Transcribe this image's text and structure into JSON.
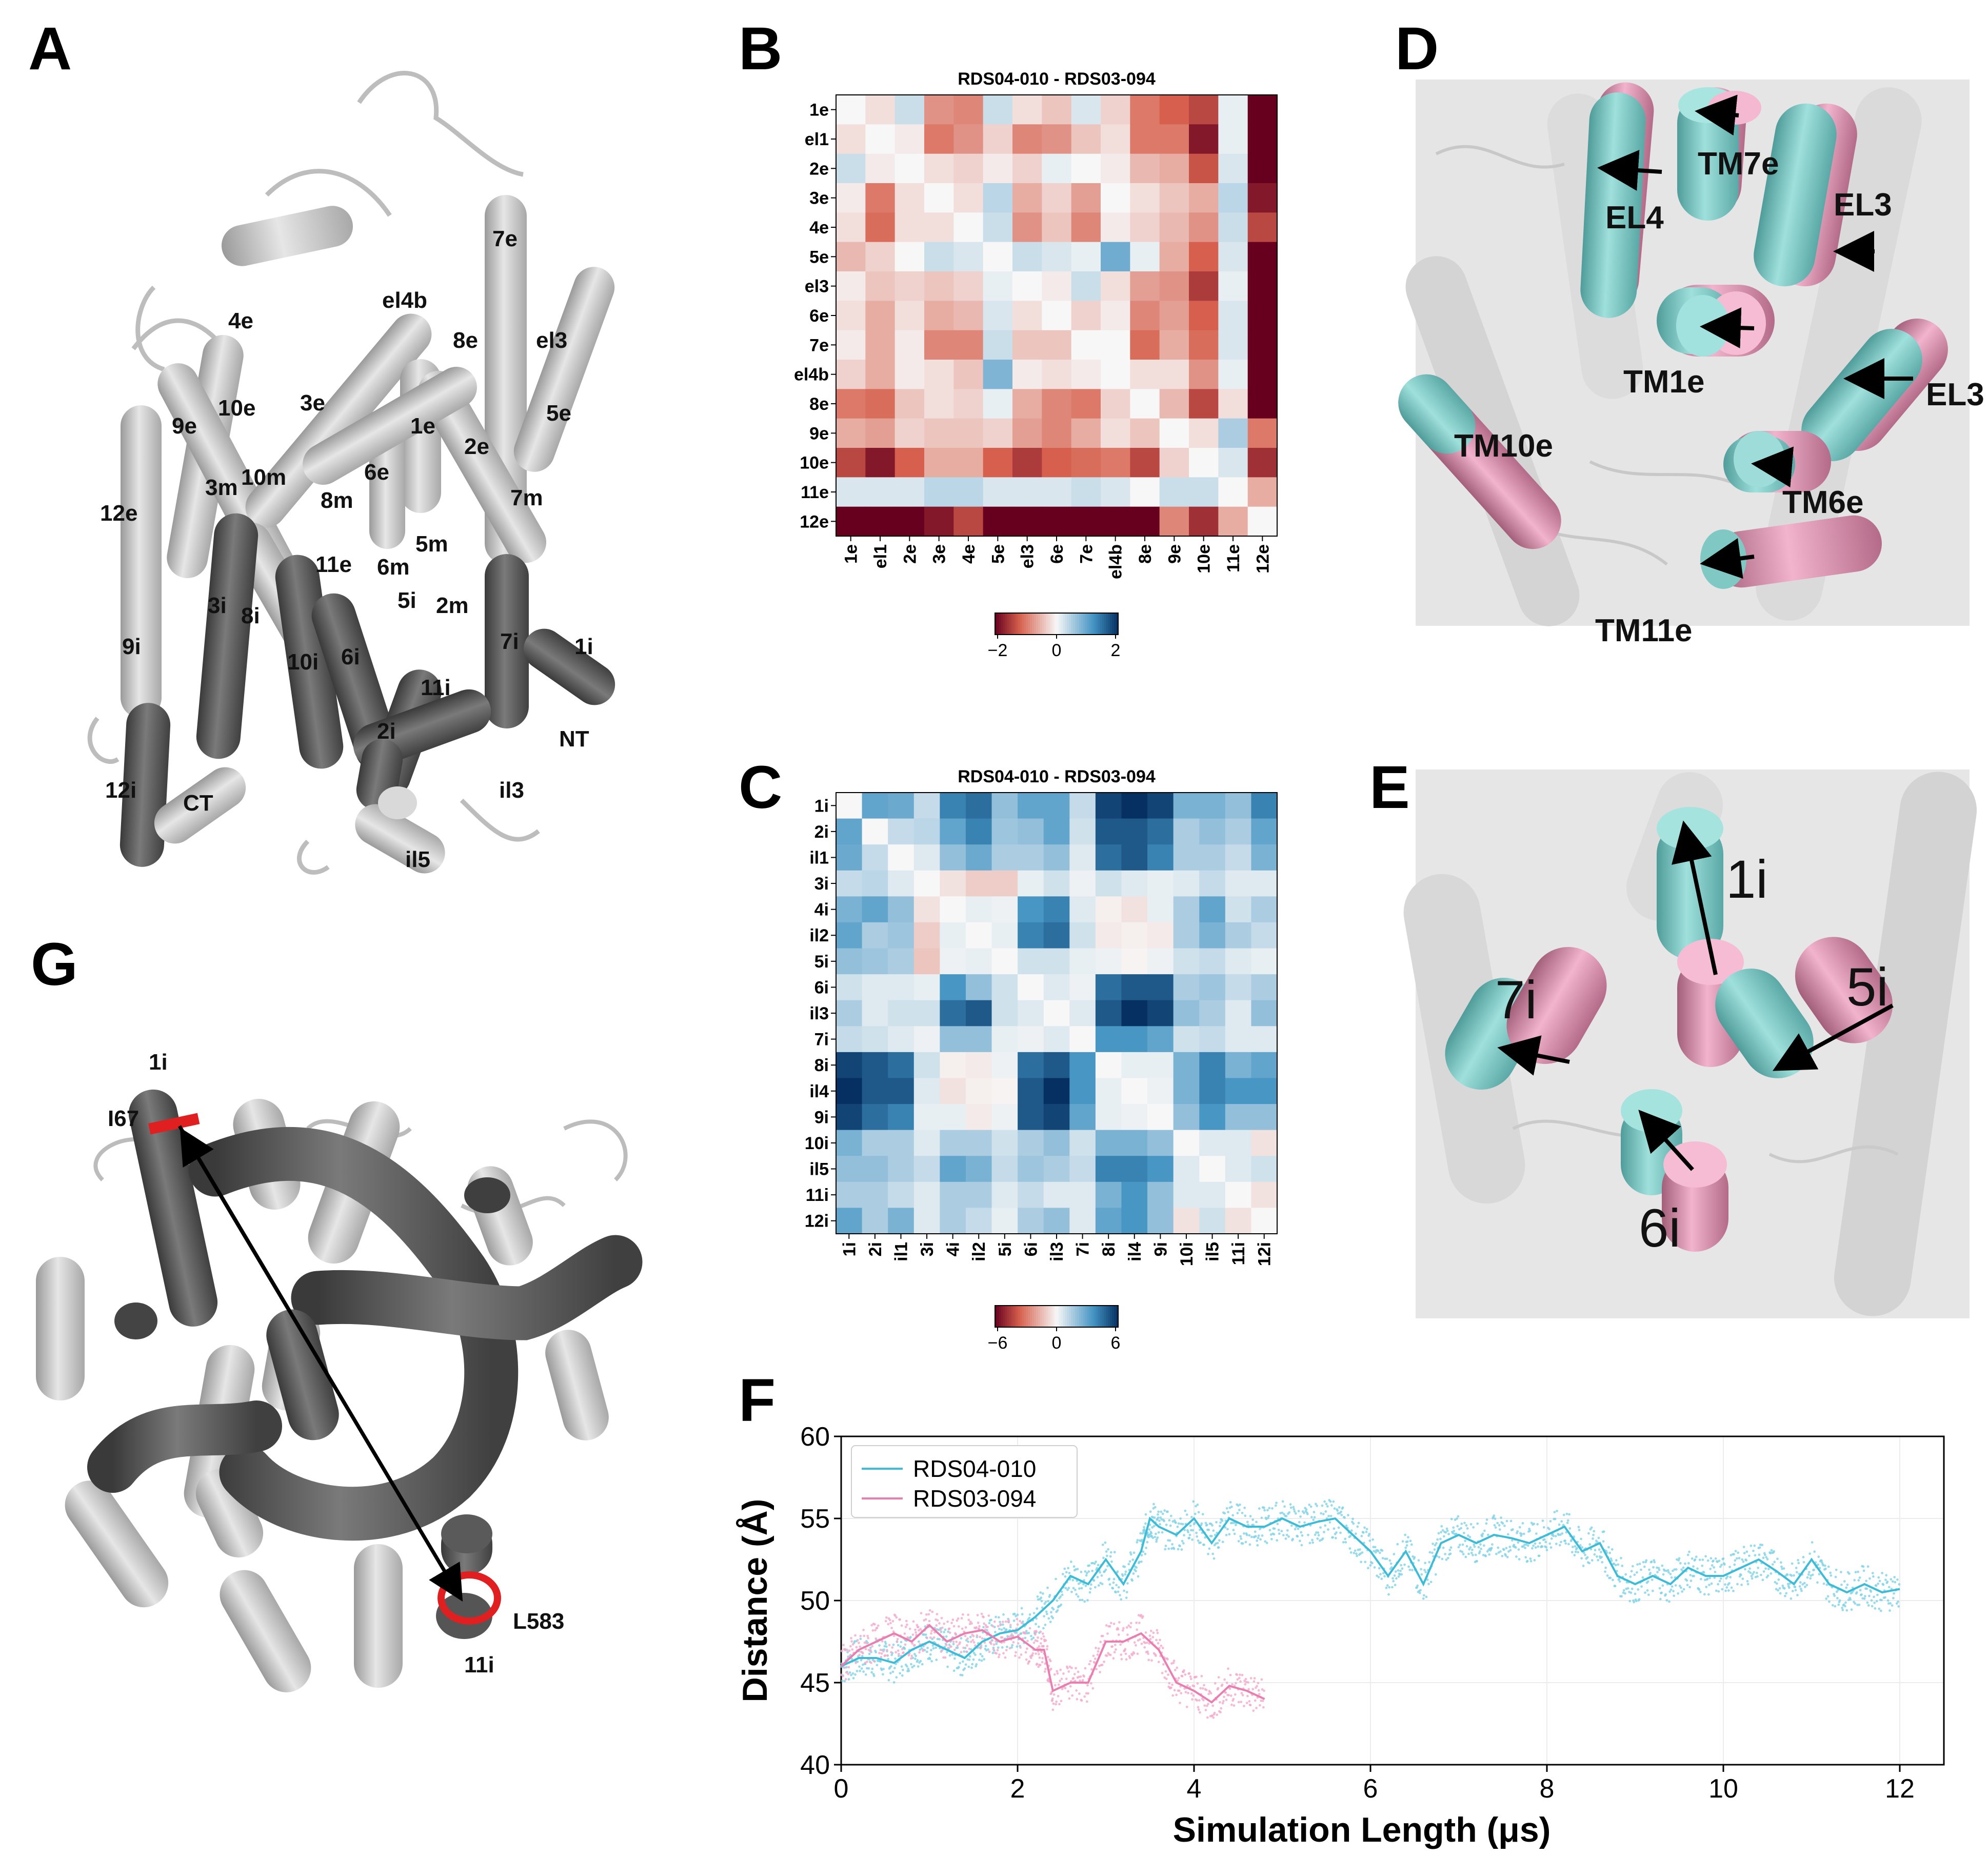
{
  "panels": {
    "A": "A",
    "B": "B",
    "C": "C",
    "D": "D",
    "E": "E",
    "F": "F",
    "G": "G"
  },
  "panelA": {
    "labels": [
      "7e",
      "4e",
      "el4b",
      "el3",
      "8e",
      "5e",
      "9e",
      "10e",
      "3e",
      "1e",
      "2e",
      "12e",
      "3m",
      "10m",
      "8m",
      "6e",
      "7m",
      "5m",
      "11e",
      "6m",
      "5i",
      "2m",
      "3i",
      "8i",
      "9i",
      "10i",
      "6i",
      "7i",
      "1i",
      "11i",
      "2i",
      "NT",
      "12i",
      "CT",
      "il3",
      "il5"
    ]
  },
  "panelB": {
    "title": "RDS04-010 - RDS03-094",
    "rows": [
      "1e",
      "el1",
      "2e",
      "3e",
      "4e",
      "5e",
      "el3",
      "6e",
      "7e",
      "el4b",
      "8e",
      "9e",
      "10e",
      "11e",
      "12e"
    ],
    "cols": [
      "1e",
      "el1",
      "2e",
      "3e",
      "4e",
      "5e",
      "el3",
      "6e",
      "7e",
      "el4b",
      "8e",
      "9e",
      "10e",
      "11e",
      "12e"
    ],
    "colorbar_ticks": [
      "−2",
      "0",
      "2"
    ],
    "vmin": -2,
    "vmax": 2,
    "matrix": [
      [
        0.0,
        -0.2,
        0.3,
        -0.8,
        -0.9,
        0.3,
        -0.2,
        -0.4,
        0.2,
        -0.3,
        -1.0,
        -1.2,
        -1.4,
        0.1,
        -2.0
      ],
      [
        -0.2,
        0.0,
        -0.1,
        -1.0,
        -0.8,
        -0.3,
        -0.9,
        -0.8,
        -0.4,
        -0.2,
        -1.0,
        -1.0,
        -1.8,
        0.1,
        -2.0
      ],
      [
        0.3,
        -0.1,
        0.0,
        -0.2,
        -0.3,
        -0.1,
        -0.3,
        0.1,
        0.0,
        -0.1,
        -0.5,
        -0.6,
        -1.3,
        0.2,
        -2.0
      ],
      [
        -0.1,
        -1.0,
        -0.2,
        0.0,
        -0.2,
        0.4,
        -0.6,
        -0.3,
        -0.7,
        0.0,
        -0.2,
        -0.4,
        -0.6,
        0.4,
        -1.8
      ],
      [
        -0.2,
        -1.1,
        -0.2,
        -0.2,
        0.0,
        0.3,
        -0.8,
        -0.4,
        -0.9,
        -0.1,
        -0.3,
        -0.5,
        -0.8,
        0.3,
        -1.4
      ],
      [
        -0.5,
        -0.3,
        0.0,
        0.3,
        0.2,
        0.0,
        0.3,
        0.2,
        0.1,
        0.9,
        0.1,
        -0.6,
        -1.2,
        0.2,
        -2.0
      ],
      [
        -0.1,
        -0.4,
        -0.3,
        -0.4,
        -0.3,
        0.1,
        0.0,
        -0.1,
        0.3,
        -0.2,
        -0.7,
        -0.8,
        -1.5,
        0.1,
        -2.0
      ],
      [
        -0.2,
        -0.6,
        -0.2,
        -0.6,
        -0.5,
        0.2,
        -0.2,
        0.0,
        -0.3,
        -0.1,
        -0.9,
        -0.7,
        -1.2,
        0.2,
        -2.0
      ],
      [
        -0.1,
        -0.6,
        -0.1,
        -0.9,
        -0.9,
        0.3,
        -0.4,
        -0.4,
        0.0,
        0.0,
        -1.1,
        -0.6,
        -1.1,
        0.2,
        -2.0
      ],
      [
        -0.3,
        -0.6,
        -0.1,
        -0.2,
        -0.4,
        0.8,
        -0.1,
        -0.2,
        -0.1,
        0.0,
        -0.2,
        -0.2,
        -0.8,
        0.1,
        -2.0
      ],
      [
        -1.0,
        -1.1,
        -0.4,
        -0.2,
        -0.3,
        0.1,
        -0.6,
        -0.9,
        -1.0,
        -0.3,
        0.0,
        -0.5,
        -1.4,
        -0.2,
        -2.0
      ],
      [
        -0.6,
        -0.7,
        -0.3,
        -0.4,
        -0.4,
        -0.3,
        -0.7,
        -0.9,
        -0.6,
        -0.2,
        -0.4,
        0.0,
        -0.2,
        0.5,
        -1.0
      ],
      [
        -1.4,
        -1.8,
        -1.2,
        -0.6,
        -0.6,
        -1.2,
        -1.5,
        -1.2,
        -1.1,
        -1.0,
        -1.4,
        -0.3,
        0.0,
        0.2,
        -1.6
      ],
      [
        0.2,
        0.2,
        0.2,
        0.4,
        0.4,
        0.2,
        0.2,
        0.2,
        0.3,
        0.2,
        0.0,
        0.3,
        0.3,
        0.0,
        -0.6
      ],
      [
        -2.0,
        -2.0,
        -2.0,
        -1.8,
        -1.4,
        -2.0,
        -2.0,
        -2.0,
        -2.0,
        -2.0,
        -2.0,
        -0.9,
        -1.6,
        -0.6,
        0.0
      ]
    ]
  },
  "panelC": {
    "title": "RDS04-010 - RDS03-094",
    "rows": [
      "1i",
      "2i",
      "il1",
      "3i",
      "4i",
      "il2",
      "5i",
      "6i",
      "il3",
      "7i",
      "8i",
      "il4",
      "9i",
      "10i",
      "il5",
      "11i",
      "12i"
    ],
    "cols": [
      "1i",
      "2i",
      "il1",
      "3i",
      "4i",
      "il2",
      "5i",
      "6i",
      "il3",
      "7i",
      "8i",
      "il4",
      "9i",
      "10i",
      "il5",
      "11i",
      "12i"
    ],
    "colorbar_ticks": [
      "−6",
      "0",
      "6"
    ],
    "vmin": -6,
    "vmax": 6,
    "matrix": [
      [
        0.0,
        3.0,
        2.8,
        1.0,
        4.0,
        4.5,
        2.0,
        3.0,
        3.0,
        1.0,
        5.5,
        6.0,
        5.5,
        2.5,
        2.5,
        2.0,
        4.0
      ],
      [
        3.0,
        0.0,
        1.0,
        1.2,
        3.0,
        4.0,
        1.8,
        2.0,
        3.0,
        0.8,
        5.0,
        5.0,
        4.5,
        1.5,
        2.0,
        1.5,
        3.0
      ],
      [
        2.8,
        1.0,
        0.0,
        0.5,
        2.0,
        2.8,
        1.5,
        1.5,
        2.0,
        0.5,
        4.5,
        5.0,
        4.0,
        1.5,
        1.5,
        1.0,
        2.5
      ],
      [
        1.0,
        1.2,
        0.5,
        0.0,
        -0.5,
        -1.0,
        -1.0,
        0.3,
        0.8,
        0.2,
        0.8,
        0.5,
        0.3,
        0.5,
        1.0,
        0.5,
        0.5
      ],
      [
        2.5,
        3.0,
        2.0,
        -0.5,
        0.0,
        0.3,
        0.2,
        3.5,
        4.0,
        0.5,
        -0.2,
        -0.5,
        0.3,
        1.5,
        3.0,
        0.8,
        1.5
      ],
      [
        3.0,
        1.5,
        1.8,
        -1.0,
        0.3,
        0.0,
        0.3,
        4.0,
        4.5,
        0.8,
        -0.3,
        -0.2,
        -0.3,
        1.5,
        2.5,
        1.5,
        1.0
      ],
      [
        2.0,
        1.8,
        1.5,
        -1.2,
        0.2,
        0.3,
        0.0,
        0.8,
        0.8,
        0.3,
        0.2,
        -0.1,
        0.2,
        0.8,
        1.0,
        0.5,
        0.3
      ],
      [
        0.8,
        0.5,
        0.5,
        0.3,
        3.5,
        2.0,
        0.8,
        0.0,
        0.5,
        0.2,
        4.5,
        5.0,
        5.0,
        1.5,
        1.8,
        1.0,
        1.5
      ],
      [
        1.5,
        0.5,
        0.8,
        0.8,
        4.5,
        5.0,
        0.8,
        0.5,
        0.0,
        0.5,
        5.0,
        6.0,
        5.5,
        2.0,
        1.5,
        0.5,
        2.0
      ],
      [
        1.0,
        0.8,
        0.5,
        0.2,
        2.0,
        2.0,
        0.3,
        0.2,
        0.5,
        0.0,
        3.5,
        3.5,
        3.0,
        0.8,
        1.0,
        0.5,
        0.5
      ],
      [
        5.5,
        5.0,
        4.5,
        0.8,
        -0.2,
        -0.3,
        0.2,
        4.5,
        5.0,
        3.5,
        0.0,
        0.3,
        0.3,
        2.5,
        4.0,
        2.5,
        3.0
      ],
      [
        6.0,
        5.0,
        5.0,
        0.5,
        -0.5,
        -0.2,
        -0.1,
        5.0,
        6.0,
        3.5,
        0.3,
        0.0,
        0.2,
        2.5,
        4.0,
        3.5,
        3.5
      ],
      [
        5.5,
        4.5,
        4.0,
        0.3,
        0.3,
        -0.3,
        0.2,
        5.0,
        5.5,
        3.0,
        0.3,
        0.2,
        0.0,
        2.0,
        3.5,
        2.0,
        2.0
      ],
      [
        2.5,
        1.5,
        1.5,
        0.5,
        1.5,
        1.5,
        0.8,
        1.5,
        2.0,
        0.8,
        2.5,
        2.5,
        2.0,
        0.0,
        0.5,
        0.5,
        -0.5
      ],
      [
        2.0,
        2.0,
        1.5,
        1.0,
        3.0,
        2.5,
        1.0,
        1.8,
        1.5,
        1.0,
        4.0,
        4.0,
        3.5,
        0.5,
        0.0,
        0.5,
        0.8
      ],
      [
        1.5,
        1.5,
        1.0,
        0.5,
        1.5,
        1.5,
        0.5,
        1.0,
        0.5,
        0.5,
        2.5,
        3.5,
        2.0,
        0.5,
        0.5,
        0.0,
        -0.5
      ],
      [
        3.0,
        1.5,
        2.5,
        0.5,
        1.5,
        1.0,
        0.3,
        1.5,
        2.0,
        0.5,
        3.0,
        3.5,
        2.0,
        -0.5,
        0.8,
        -0.5,
        0.0
      ]
    ]
  },
  "panelD": {
    "labels": [
      "TM7e",
      "EL4",
      "EL3",
      "EL3",
      "TM1e",
      "TM10e",
      "TM6e",
      "TM11e"
    ]
  },
  "panelE": {
    "labels": [
      "1i",
      "5i",
      "7i",
      "6i"
    ]
  },
  "panelG": {
    "labels": [
      "1i",
      "I67",
      "L583",
      "11i"
    ]
  },
  "chart_data": {
    "type": "line",
    "title": "",
    "xlabel": "Simulation Length (μs)",
    "ylabel": "Distance (Å)",
    "xlim": [
      0,
      12.5
    ],
    "ylim": [
      40,
      60
    ],
    "xticks": [
      "0",
      "2",
      "4",
      "6",
      "8",
      "10",
      "12"
    ],
    "yticks": [
      "40",
      "45",
      "50",
      "55",
      "60"
    ],
    "grid": true,
    "legend_position": "top-left",
    "series": [
      {
        "name": "RDS04-010",
        "color": "#3cbcd6",
        "raw_color": "#7fd2e6",
        "x": [
          0,
          0.2,
          0.4,
          0.6,
          0.8,
          1.0,
          1.2,
          1.4,
          1.6,
          1.8,
          2.0,
          2.2,
          2.4,
          2.6,
          2.8,
          3.0,
          3.2,
          3.4,
          3.5,
          3.6,
          3.8,
          4.0,
          4.2,
          4.4,
          4.6,
          4.8,
          5.0,
          5.2,
          5.4,
          5.6,
          5.8,
          6.0,
          6.2,
          6.4,
          6.6,
          6.8,
          7.0,
          7.2,
          7.4,
          7.6,
          7.8,
          8.0,
          8.2,
          8.4,
          8.6,
          8.8,
          9.0,
          9.2,
          9.4,
          9.6,
          9.8,
          10.0,
          10.2,
          10.4,
          10.6,
          10.8,
          11.0,
          11.2,
          11.4,
          11.6,
          11.8,
          12.0
        ],
        "y": [
          46,
          46.5,
          46.5,
          46.2,
          47,
          47.5,
          47,
          46.5,
          47.5,
          48,
          48.2,
          49,
          50,
          51.5,
          51,
          52.5,
          51,
          53,
          55,
          54.5,
          54,
          55,
          53.5,
          55,
          54.5,
          54.5,
          55,
          54.5,
          54.8,
          55,
          54,
          53,
          51.5,
          53,
          51,
          53.5,
          54,
          53.5,
          54,
          53.8,
          53.5,
          54,
          54.5,
          53,
          53.5,
          51.5,
          51,
          51.5,
          51,
          52,
          51.5,
          51.5,
          52,
          52.5,
          51.8,
          51,
          52.5,
          51,
          50.5,
          51,
          50.5,
          50.7
        ]
      },
      {
        "name": "RDS03-094",
        "color": "#e87fb0",
        "raw_color": "#f3aacb",
        "x": [
          0,
          0.2,
          0.4,
          0.6,
          0.8,
          1.0,
          1.2,
          1.4,
          1.6,
          1.8,
          2.0,
          2.2,
          2.3,
          2.4,
          2.6,
          2.8,
          3.0,
          3.2,
          3.4,
          3.6,
          3.8,
          4.0,
          4.2,
          4.4,
          4.6,
          4.8
        ],
        "y": [
          46,
          47,
          47.5,
          48,
          47.5,
          48.5,
          47.5,
          48,
          48.2,
          47.5,
          47.8,
          47,
          47,
          44.5,
          45,
          45,
          47.5,
          47.5,
          48,
          47,
          45,
          44.5,
          43.8,
          44.8,
          44.5,
          44
        ]
      }
    ]
  }
}
